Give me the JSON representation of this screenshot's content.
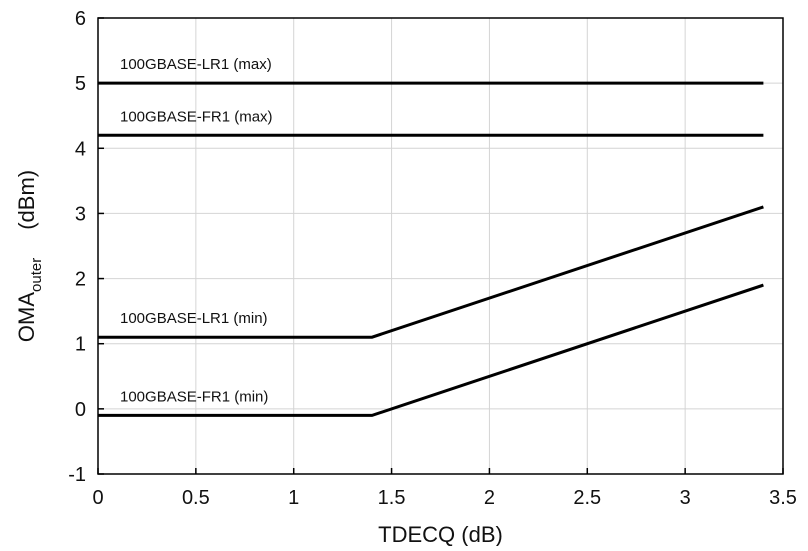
{
  "chart_data": {
    "type": "line",
    "title": "",
    "xlabel": "TDECQ (dB)",
    "ylabel": {
      "main": "OMA",
      "subscript": "outer",
      "unit": "(dBm)"
    },
    "xlim": [
      0,
      3.5
    ],
    "ylim": [
      -1,
      6
    ],
    "xticks": [
      0,
      0.5,
      1,
      1.5,
      2,
      2.5,
      3,
      3.5
    ],
    "xtick_labels": [
      "0",
      "0.5",
      "1",
      "1.5",
      "2",
      "2.5",
      "3",
      "3.5"
    ],
    "yticks": [
      -1,
      0,
      1,
      2,
      3,
      4,
      5,
      6
    ],
    "ytick_labels": [
      "-1",
      "0",
      "1",
      "2",
      "3",
      "4",
      "5",
      "6"
    ],
    "grid": true,
    "legend": "none",
    "series": [
      {
        "name": "100GBASE-LR1 (max)",
        "x": [
          0,
          3.4
        ],
        "y": [
          5,
          5
        ]
      },
      {
        "name": "100GBASE-FR1 (max)",
        "x": [
          0,
          3.4
        ],
        "y": [
          4.2,
          4.2
        ]
      },
      {
        "name": "100GBASE-LR1 (min)",
        "x": [
          0,
          1.4,
          3.4
        ],
        "y": [
          1.1,
          1.1,
          3.1
        ]
      },
      {
        "name": "100GBASE-FR1 (min)",
        "x": [
          0,
          1.4,
          3.4
        ],
        "y": [
          -0.1,
          -0.1,
          1.9
        ]
      }
    ]
  }
}
